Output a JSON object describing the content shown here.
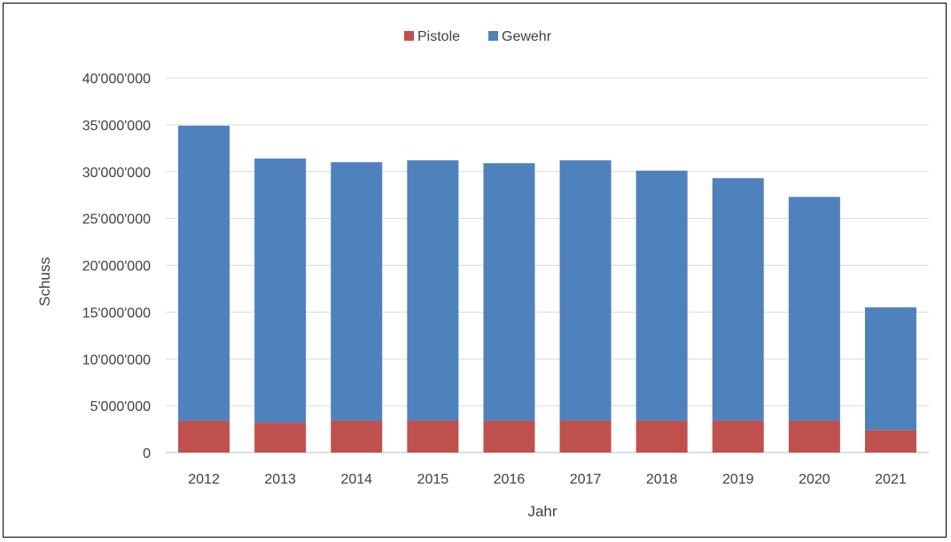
{
  "chart_data": {
    "type": "bar",
    "stacked": true,
    "categories": [
      "2012",
      "2013",
      "2014",
      "2015",
      "2016",
      "2017",
      "2018",
      "2019",
      "2020",
      "2021"
    ],
    "series": [
      {
        "name": "Pistole",
        "color": "#c0504d",
        "values": [
          3400000,
          3200000,
          3400000,
          3400000,
          3400000,
          3400000,
          3400000,
          3400000,
          3400000,
          2400000
        ]
      },
      {
        "name": "Gewehr",
        "color": "#4f81bd",
        "values": [
          31500000,
          28200000,
          27600000,
          27800000,
          27500000,
          27800000,
          26700000,
          25900000,
          23900000,
          13100000
        ]
      }
    ],
    "xlabel": "Jahr",
    "ylabel": "Schuss",
    "ylim": [
      0,
      40000000
    ],
    "yticks": [
      "0",
      "5'000'000",
      "10'000'000",
      "15'000'000",
      "20'000'000",
      "25'000'000",
      "30'000'000",
      "35'000'000",
      "40'000'000"
    ],
    "grid": true,
    "legend_position": "top",
    "gridline_color": "#d9d9d9"
  }
}
